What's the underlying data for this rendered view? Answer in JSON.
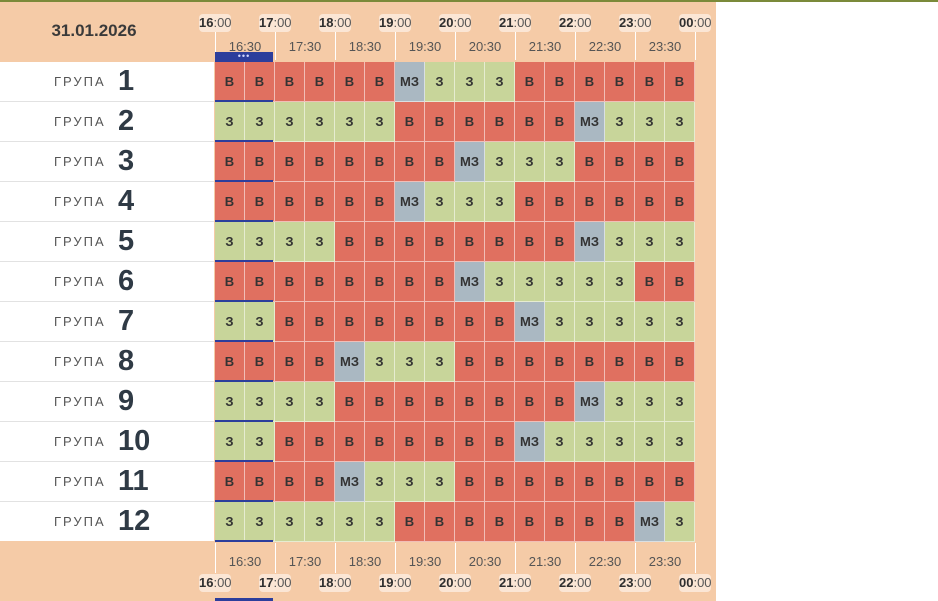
{
  "header": {
    "date": "31.01.2026",
    "hours": [
      {
        "h": "16",
        "m": ":00"
      },
      {
        "h": "17",
        "m": ":00"
      },
      {
        "h": "18",
        "m": ":00"
      },
      {
        "h": "19",
        "m": ":00"
      },
      {
        "h": "20",
        "m": ":00"
      },
      {
        "h": "21",
        "m": ":00"
      },
      {
        "h": "22",
        "m": ":00"
      },
      {
        "h": "23",
        "m": ":00"
      },
      {
        "h": "00",
        "m": ":00"
      }
    ],
    "halfHours": [
      "16:30",
      "17:30",
      "18:30",
      "19:30",
      "20:30",
      "21:30",
      "22:30",
      "23:30"
    ],
    "nowMarker": "•••"
  },
  "groupLabel": "ГРУПА",
  "groups": [
    {
      "number": "1",
      "cells": [
        "В",
        "В",
        "В",
        "В",
        "В",
        "В",
        "МЗ",
        "З",
        "З",
        "З",
        "В",
        "В",
        "В",
        "В",
        "В",
        "В"
      ]
    },
    {
      "number": "2",
      "cells": [
        "З",
        "З",
        "З",
        "З",
        "З",
        "З",
        "В",
        "В",
        "В",
        "В",
        "В",
        "В",
        "МЗ",
        "З",
        "З",
        "З"
      ]
    },
    {
      "number": "3",
      "cells": [
        "В",
        "В",
        "В",
        "В",
        "В",
        "В",
        "В",
        "В",
        "МЗ",
        "З",
        "З",
        "З",
        "В",
        "В",
        "В",
        "В"
      ]
    },
    {
      "number": "4",
      "cells": [
        "В",
        "В",
        "В",
        "В",
        "В",
        "В",
        "МЗ",
        "З",
        "З",
        "З",
        "В",
        "В",
        "В",
        "В",
        "В",
        "В"
      ]
    },
    {
      "number": "5",
      "cells": [
        "З",
        "З",
        "З",
        "З",
        "В",
        "В",
        "В",
        "В",
        "В",
        "В",
        "В",
        "В",
        "МЗ",
        "З",
        "З",
        "З"
      ]
    },
    {
      "number": "6",
      "cells": [
        "В",
        "В",
        "В",
        "В",
        "В",
        "В",
        "В",
        "В",
        "МЗ",
        "З",
        "З",
        "З",
        "З",
        "З",
        "В",
        "В"
      ]
    },
    {
      "number": "7",
      "cells": [
        "З",
        "З",
        "В",
        "В",
        "В",
        "В",
        "В",
        "В",
        "В",
        "В",
        "МЗ",
        "З",
        "З",
        "З",
        "З",
        "З"
      ]
    },
    {
      "number": "8",
      "cells": [
        "В",
        "В",
        "В",
        "В",
        "МЗ",
        "З",
        "З",
        "З",
        "В",
        "В",
        "В",
        "В",
        "В",
        "В",
        "В",
        "В"
      ]
    },
    {
      "number": "9",
      "cells": [
        "З",
        "З",
        "З",
        "З",
        "В",
        "В",
        "В",
        "В",
        "В",
        "В",
        "В",
        "В",
        "МЗ",
        "З",
        "З",
        "З"
      ]
    },
    {
      "number": "10",
      "cells": [
        "З",
        "З",
        "В",
        "В",
        "В",
        "В",
        "В",
        "В",
        "В",
        "В",
        "МЗ",
        "З",
        "З",
        "З",
        "З",
        "З"
      ]
    },
    {
      "number": "11",
      "cells": [
        "В",
        "В",
        "В",
        "В",
        "МЗ",
        "З",
        "З",
        "З",
        "В",
        "В",
        "В",
        "В",
        "В",
        "В",
        "В",
        "В"
      ]
    },
    {
      "number": "12",
      "cells": [
        "З",
        "З",
        "З",
        "З",
        "З",
        "З",
        "В",
        "В",
        "В",
        "В",
        "В",
        "В",
        "В",
        "В",
        "МЗ",
        "З"
      ]
    }
  ],
  "colors": {
    "В": "#e07060",
    "З": "#c8d59a",
    "МЗ": "#aab8c2",
    "accent": "#2c3e9c"
  }
}
